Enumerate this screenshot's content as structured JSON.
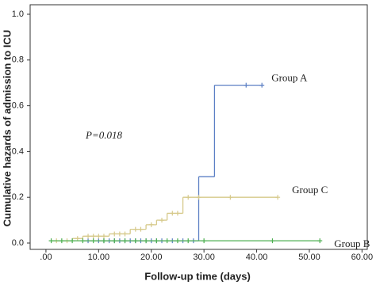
{
  "chart_data": {
    "type": "step",
    "y_label": "Cumulative hazards of admission to ICU",
    "x_label": "Follow-up time (days)",
    "annotation": "P=0.018",
    "xlim": [
      -3,
      61
    ],
    "ylim": [
      0,
      1.0
    ],
    "xticks": [
      {
        "value": 0,
        "label": ".00"
      },
      {
        "value": 10,
        "label": "10.00"
      },
      {
        "value": 20,
        "label": "20.00"
      },
      {
        "value": 30,
        "label": "30.00"
      },
      {
        "value": 40,
        "label": "40.00"
      },
      {
        "value": 50,
        "label": "50.00"
      },
      {
        "value": 60,
        "label": "60.00"
      }
    ],
    "yticks": [
      {
        "value": 0,
        "label": "0.0"
      },
      0.2,
      0.4,
      0.6,
      0.8,
      {
        "value": 1.0,
        "label": "1.0"
      }
    ],
    "series": [
      {
        "name": "Group A",
        "color": "#5b7fc4",
        "x": [
          7,
          29,
          32
        ],
        "values": [
          0.01,
          0.29,
          0.69
        ],
        "end": 41,
        "censor_x": [
          8,
          10,
          11,
          12,
          13,
          14,
          15,
          16,
          17,
          18,
          19,
          20,
          21,
          22,
          24,
          26,
          28,
          38,
          41
        ],
        "censor_values": [
          0.01,
          0.01,
          0.01,
          0.01,
          0.01,
          0.01,
          0.01,
          0.01,
          0.01,
          0.01,
          0.01,
          0.01,
          0.01,
          0.01,
          0.01,
          0.01,
          0.01,
          0.69,
          0.69
        ]
      },
      {
        "name": "Group C",
        "color": "#d6c98a",
        "x": [
          1,
          5,
          7,
          12,
          16,
          19,
          21,
          23,
          26
        ],
        "values": [
          0.01,
          0.02,
          0.03,
          0.04,
          0.06,
          0.08,
          0.1,
          0.13,
          0.2
        ],
        "end": 44,
        "censor_x": [
          2,
          4,
          6,
          8,
          9,
          10,
          11,
          13,
          14,
          15,
          17,
          18,
          20,
          22,
          24,
          25,
          27,
          29,
          35,
          44
        ],
        "censor_values": [
          0.01,
          0.01,
          0.02,
          0.03,
          0.03,
          0.03,
          0.03,
          0.04,
          0.04,
          0.04,
          0.06,
          0.06,
          0.08,
          0.1,
          0.13,
          0.13,
          0.2,
          0.2,
          0.2,
          0.2
        ]
      },
      {
        "name": "Group B",
        "color": "#4caf50",
        "x": [
          1
        ],
        "values": [
          0.01
        ],
        "end": 52,
        "censor_x": [
          1,
          3,
          5,
          7,
          9,
          11,
          13,
          15,
          17,
          19,
          21,
          23,
          25,
          27,
          30,
          43,
          52
        ],
        "censor_values": [
          0.01,
          0.01,
          0.01,
          0.01,
          0.01,
          0.01,
          0.01,
          0.01,
          0.01,
          0.01,
          0.01,
          0.01,
          0.01,
          0.01,
          0.01,
          0.01,
          0.01
        ]
      }
    ]
  }
}
